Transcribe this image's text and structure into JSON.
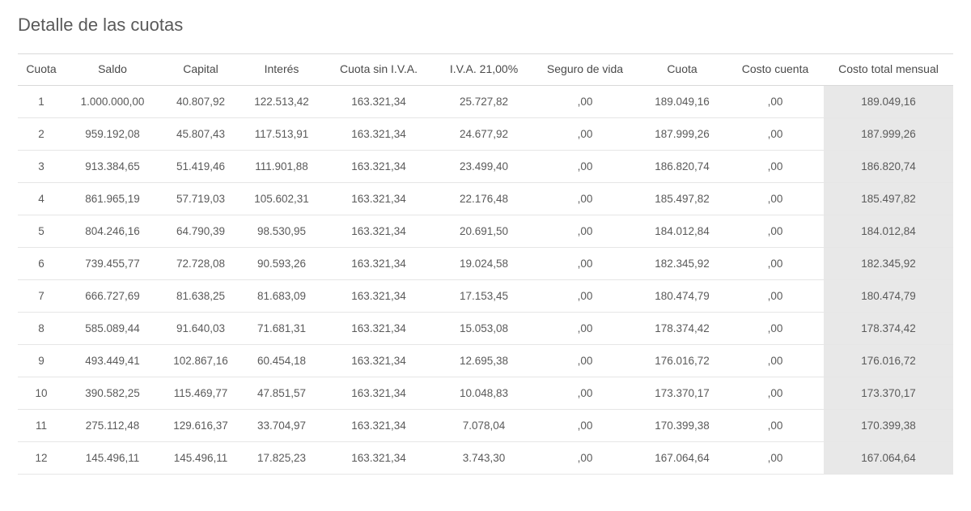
{
  "title": "Detalle de las cuotas",
  "table": {
    "columns": [
      "Cuota",
      "Saldo",
      "Capital",
      "Interés",
      "Cuota sin I.V.A.",
      "I.V.A. 21,00%",
      "Seguro de vida",
      "Cuota",
      "Costo cuenta",
      "Costo total mensual"
    ],
    "highlight_last_column": true,
    "border_color": "#d9d9d9",
    "row_border_color": "#e6e6e6",
    "highlight_bg": "#e8e8e8",
    "text_color": "#5a5a5a",
    "header_fontsize": 14,
    "cell_fontsize": 13.5,
    "rows": [
      [
        "1",
        "1.000.000,00",
        "40.807,92",
        "122.513,42",
        "163.321,34",
        "25.727,82",
        ",00",
        "189.049,16",
        ",00",
        "189.049,16"
      ],
      [
        "2",
        "959.192,08",
        "45.807,43",
        "117.513,91",
        "163.321,34",
        "24.677,92",
        ",00",
        "187.999,26",
        ",00",
        "187.999,26"
      ],
      [
        "3",
        "913.384,65",
        "51.419,46",
        "111.901,88",
        "163.321,34",
        "23.499,40",
        ",00",
        "186.820,74",
        ",00",
        "186.820,74"
      ],
      [
        "4",
        "861.965,19",
        "57.719,03",
        "105.602,31",
        "163.321,34",
        "22.176,48",
        ",00",
        "185.497,82",
        ",00",
        "185.497,82"
      ],
      [
        "5",
        "804.246,16",
        "64.790,39",
        "98.530,95",
        "163.321,34",
        "20.691,50",
        ",00",
        "184.012,84",
        ",00",
        "184.012,84"
      ],
      [
        "6",
        "739.455,77",
        "72.728,08",
        "90.593,26",
        "163.321,34",
        "19.024,58",
        ",00",
        "182.345,92",
        ",00",
        "182.345,92"
      ],
      [
        "7",
        "666.727,69",
        "81.638,25",
        "81.683,09",
        "163.321,34",
        "17.153,45",
        ",00",
        "180.474,79",
        ",00",
        "180.474,79"
      ],
      [
        "8",
        "585.089,44",
        "91.640,03",
        "71.681,31",
        "163.321,34",
        "15.053,08",
        ",00",
        "178.374,42",
        ",00",
        "178.374,42"
      ],
      [
        "9",
        "493.449,41",
        "102.867,16",
        "60.454,18",
        "163.321,34",
        "12.695,38",
        ",00",
        "176.016,72",
        ",00",
        "176.016,72"
      ],
      [
        "10",
        "390.582,25",
        "115.469,77",
        "47.851,57",
        "163.321,34",
        "10.048,83",
        ",00",
        "173.370,17",
        ",00",
        "173.370,17"
      ],
      [
        "11",
        "275.112,48",
        "129.616,37",
        "33.704,97",
        "163.321,34",
        "7.078,04",
        ",00",
        "170.399,38",
        ",00",
        "170.399,38"
      ],
      [
        "12",
        "145.496,11",
        "145.496,11",
        "17.825,23",
        "163.321,34",
        "3.743,30",
        ",00",
        "167.064,64",
        ",00",
        "167.064,64"
      ]
    ]
  }
}
